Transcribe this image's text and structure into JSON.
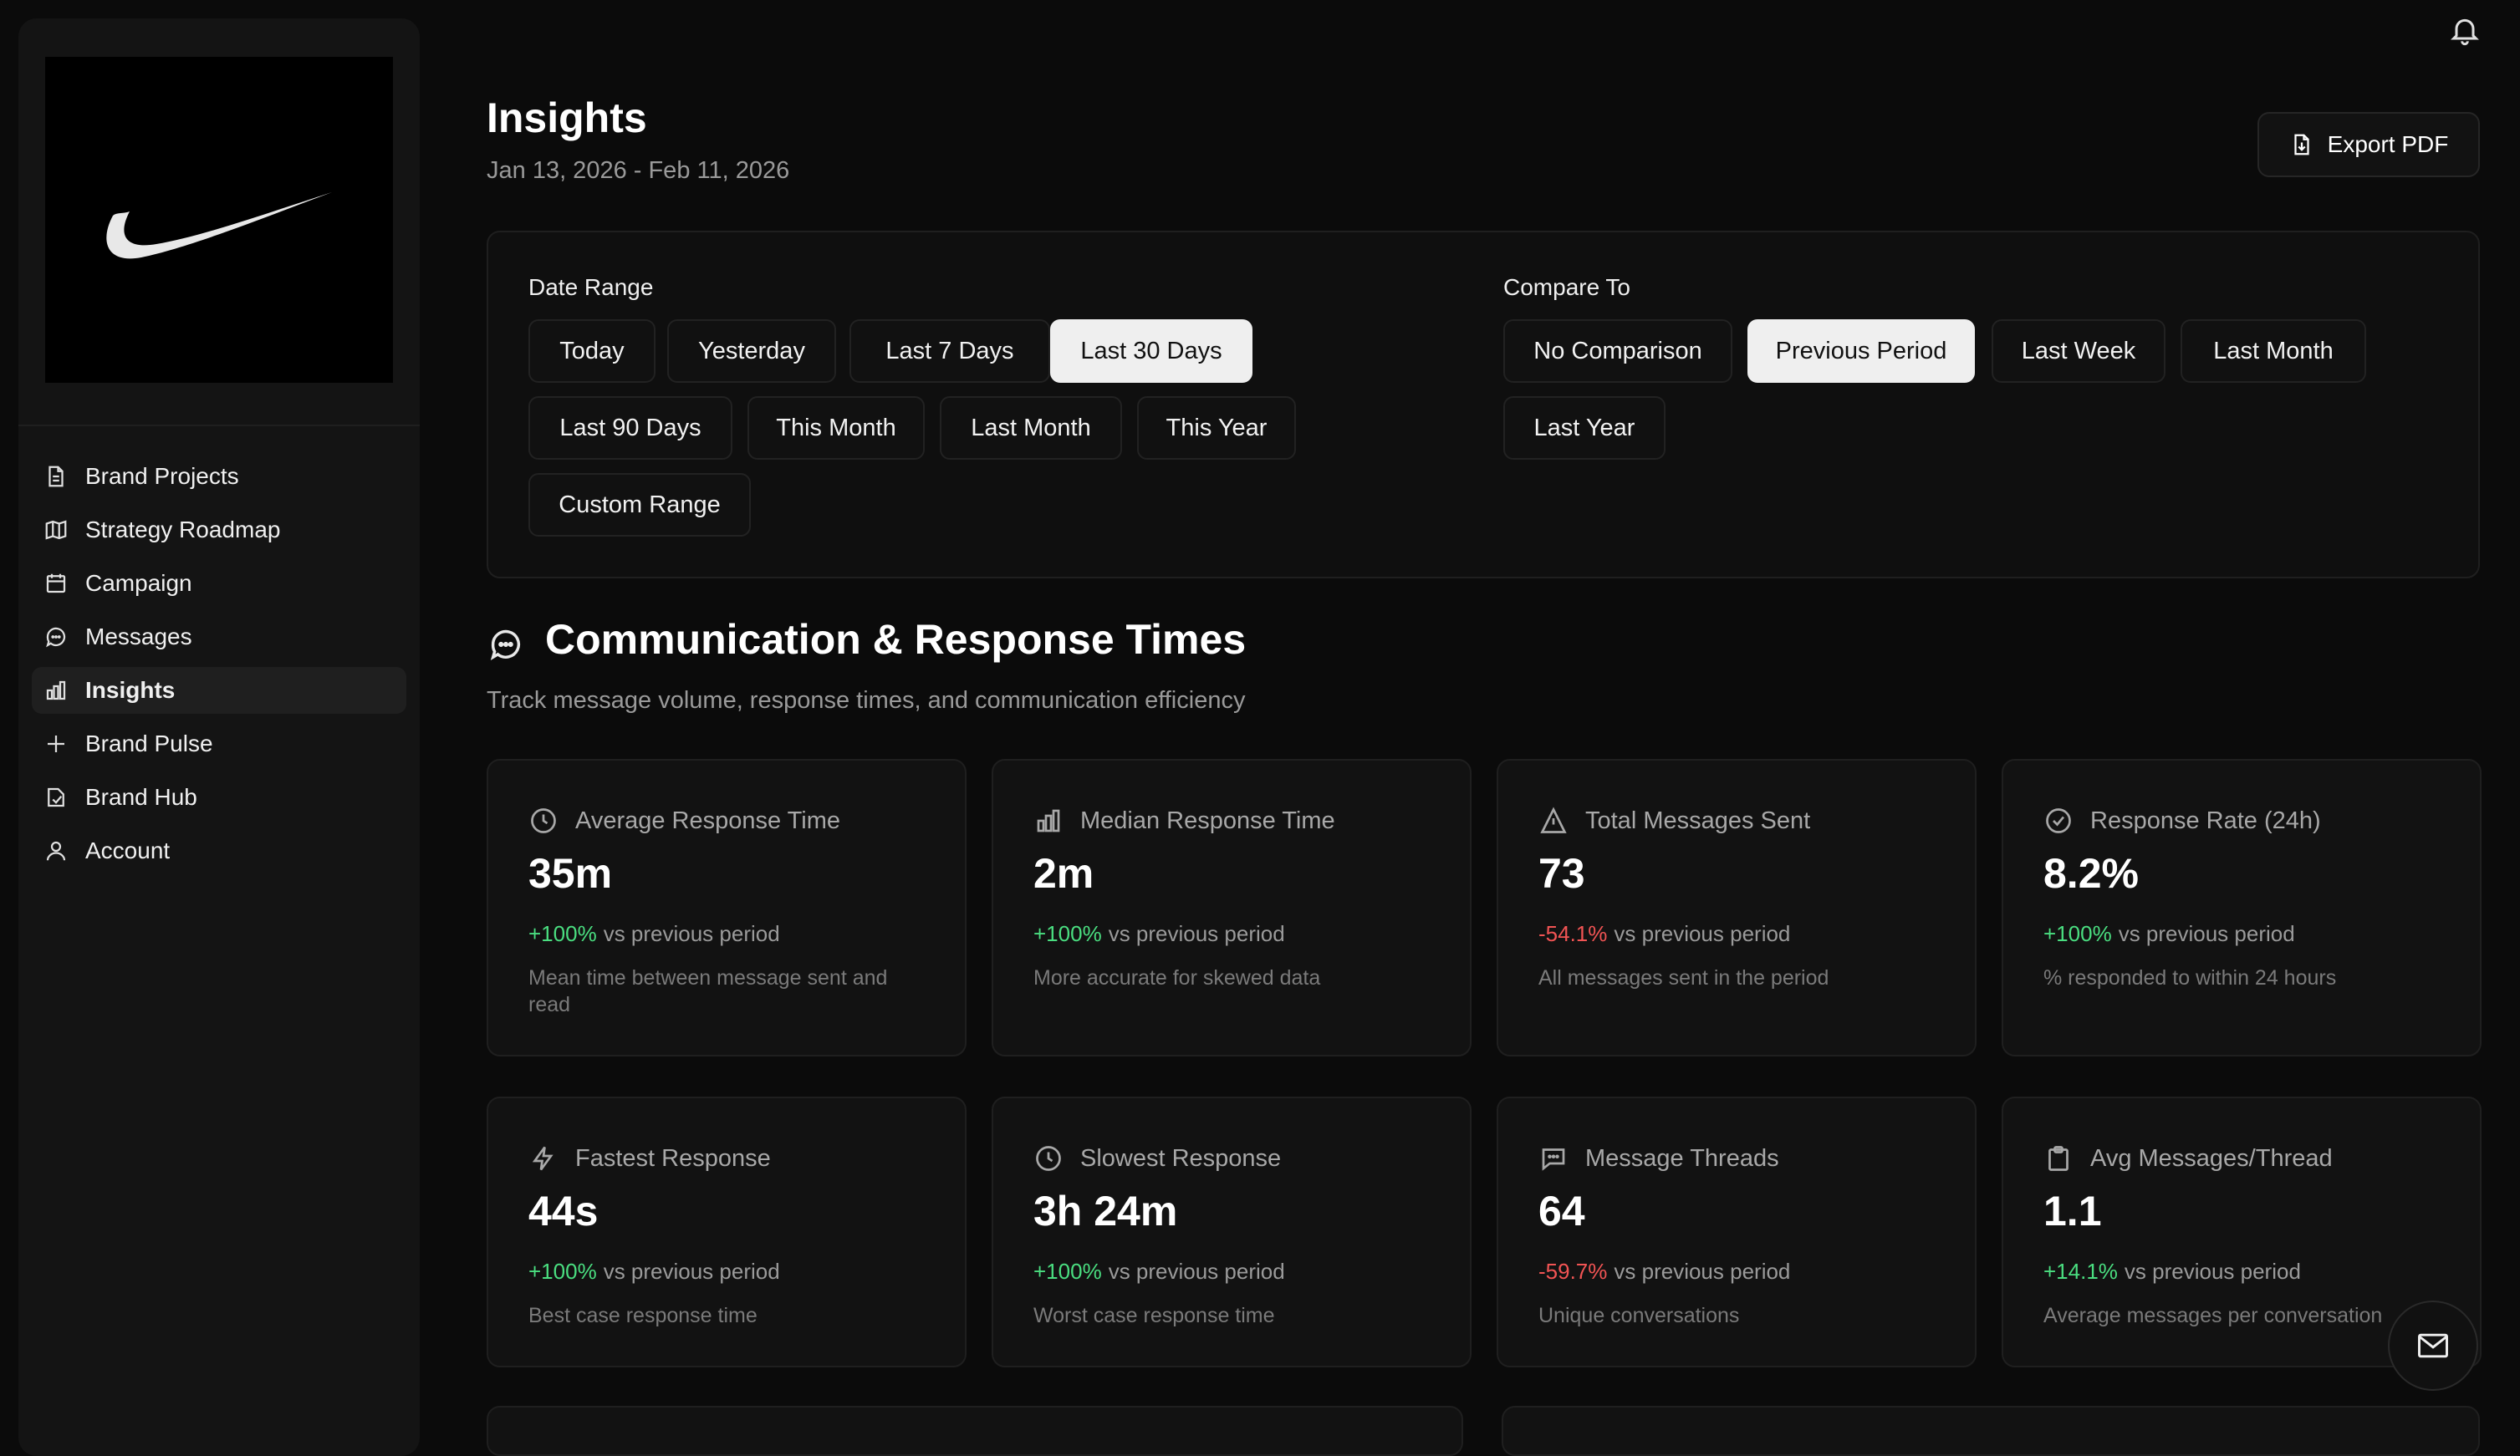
{
  "sidebar": {
    "items": [
      {
        "label": "Brand Projects",
        "icon": "file-icon"
      },
      {
        "label": "Strategy Roadmap",
        "icon": "map-icon"
      },
      {
        "label": "Campaign",
        "icon": "calendar-icon"
      },
      {
        "label": "Messages",
        "icon": "chat-icon"
      },
      {
        "label": "Insights",
        "icon": "bar-chart-icon",
        "active": true
      },
      {
        "label": "Brand Pulse",
        "icon": "plus-icon"
      },
      {
        "label": "Brand Hub",
        "icon": "book-icon"
      },
      {
        "label": "Account",
        "icon": "user-icon"
      }
    ]
  },
  "header": {
    "title": "Insights",
    "date_range": "Jan 13, 2026 - Feb 11, 2026",
    "export_label": "Export PDF"
  },
  "filters": {
    "date_range_label": "Date Range",
    "date_options": [
      "Today",
      "Yesterday",
      "Last 7 Days",
      "Last 30 Days",
      "Last 90 Days",
      "This Month",
      "Last Month",
      "This Year",
      "Custom Range"
    ],
    "date_selected": "Last 30 Days",
    "compare_label": "Compare To",
    "compare_options": [
      "No Comparison",
      "Previous Period",
      "Last Week",
      "Last Month",
      "Last Year"
    ],
    "compare_selected": "Previous Period"
  },
  "section": {
    "title": "Communication & Response Times",
    "subtitle": "Track message volume, response times, and communication efficiency"
  },
  "cards": [
    {
      "title": "Average Response Time",
      "icon": "clock-icon",
      "value": "35m",
      "change": "+100%",
      "trend": "up",
      "vs": "vs previous period",
      "desc": "Mean time between message sent and read"
    },
    {
      "title": "Median Response Time",
      "icon": "bar-chart-icon",
      "value": "2m",
      "change": "+100%",
      "trend": "up",
      "vs": "vs previous period",
      "desc": "More accurate for skewed data"
    },
    {
      "title": "Total Messages Sent",
      "icon": "send-icon",
      "value": "73",
      "change": "-54.1%",
      "trend": "down",
      "vs": "vs previous period",
      "desc": "All messages sent in the period"
    },
    {
      "title": "Response Rate (24h)",
      "icon": "check-circle-icon",
      "value": "8.2%",
      "change": "+100%",
      "trend": "up",
      "vs": "vs previous period",
      "desc": "% responded to within 24 hours"
    },
    {
      "title": "Fastest Response",
      "icon": "lightning-icon",
      "value": "44s",
      "change": "+100%",
      "trend": "up",
      "vs": "vs previous period",
      "desc": "Best case response time"
    },
    {
      "title": "Slowest Response",
      "icon": "clock-icon",
      "value": "3h 24m",
      "change": "+100%",
      "trend": "up",
      "vs": "vs previous period",
      "desc": "Worst case response time"
    },
    {
      "title": "Message Threads",
      "icon": "message-square-icon",
      "value": "64",
      "change": "-59.7%",
      "trend": "down",
      "vs": "vs previous period",
      "desc": "Unique conversations"
    },
    {
      "title": "Avg Messages/Thread",
      "icon": "clipboard-icon",
      "value": "1.1",
      "change": "+14.1%",
      "trend": "up",
      "vs": "vs previous period",
      "desc": "Average messages per conversation"
    }
  ],
  "colors": {
    "positive": "#4ade80",
    "negative": "#f25454",
    "selected_chip": "#efefef"
  }
}
